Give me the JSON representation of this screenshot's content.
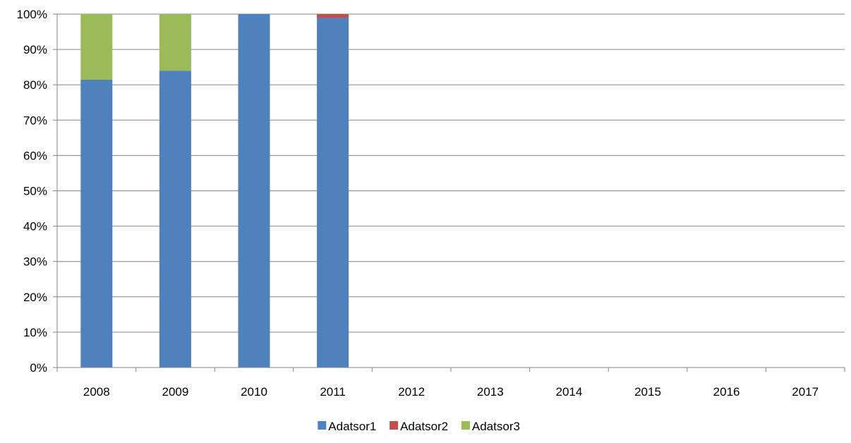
{
  "chart_data": {
    "type": "bar",
    "stacked": true,
    "percent_stacked": true,
    "title": "",
    "xlabel": "",
    "ylabel": "",
    "categories": [
      "2008",
      "2009",
      "2010",
      "2011",
      "2012",
      "2013",
      "2014",
      "2015",
      "2016",
      "2017"
    ],
    "series": [
      {
        "name": "Adatsor1",
        "color": "#4f81bd",
        "values": [
          81.5,
          84,
          100,
          99,
          0,
          0,
          0,
          0,
          0,
          0
        ]
      },
      {
        "name": "Adatsor2",
        "color": "#c0504d",
        "values": [
          0,
          0,
          0,
          1,
          0,
          0,
          0,
          0,
          0,
          0
        ]
      },
      {
        "name": "Adatsor3",
        "color": "#9bbb59",
        "values": [
          18.5,
          16,
          0,
          0,
          0,
          0,
          0,
          0,
          0,
          0
        ]
      }
    ],
    "ylim": [
      0,
      100
    ],
    "y_ticks": [
      "0%",
      "10%",
      "20%",
      "30%",
      "40%",
      "50%",
      "60%",
      "70%",
      "80%",
      "90%",
      "100%"
    ],
    "grid": true,
    "legend_position": "bottom"
  }
}
